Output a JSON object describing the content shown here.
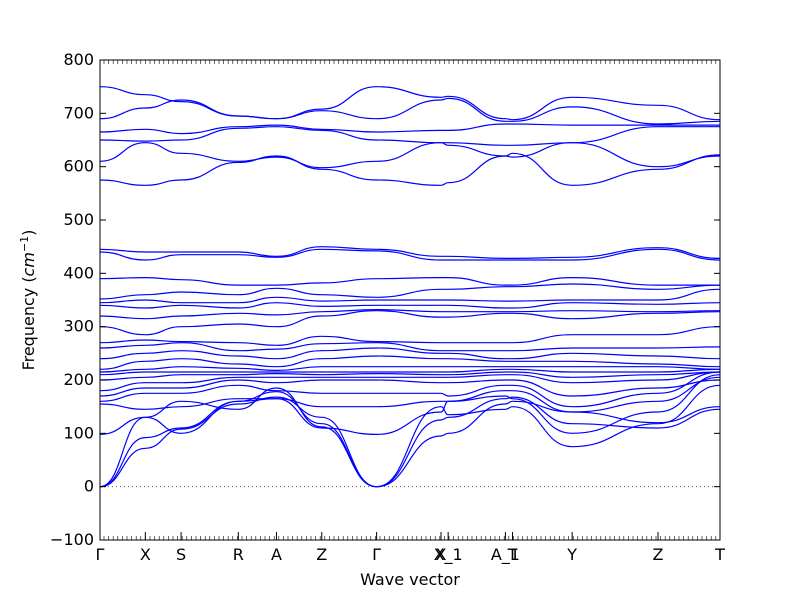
{
  "chart_data": {
    "type": "line",
    "title": "",
    "xlabel": "Wave vector",
    "ylabel": "Frequency ($cm^{-1}$)",
    "ylabel_parts": {
      "prefix": "Frequency (",
      "unit_base": "cm",
      "unit_exp": "−1",
      "suffix": ")"
    },
    "ylim": [
      -100,
      800
    ],
    "yticks": [
      -100,
      0,
      100,
      200,
      300,
      400,
      500,
      600,
      700,
      800
    ],
    "xlim": [
      0,
      13
    ],
    "xticks": [
      {
        "label": "Γ",
        "x": 0
      },
      {
        "label": "X",
        "x": 0.95
      },
      {
        "label": "S",
        "x": 1.7
      },
      {
        "label": "R",
        "x": 2.9
      },
      {
        "label": "A",
        "x": 3.7
      },
      {
        "label": "Z",
        "x": 4.65
      },
      {
        "label": "Γ",
        "x": 5.8
      },
      {
        "label": "X",
        "x": 7.15
      },
      {
        "label": "X_1",
        "x": 7.3
      },
      {
        "label": "A_1",
        "x": 8.5
      },
      {
        "label": "T",
        "x": 8.65
      },
      {
        "label": "Y",
        "x": 9.9
      },
      {
        "label": "Z",
        "x": 11.7
      },
      {
        "label": "T",
        "x": 13.0
      }
    ],
    "zero_line": true,
    "grid": false,
    "legend": "none",
    "line_color": "#0000ff",
    "series": [
      {
        "x": [
          0,
          0.95,
          1.7,
          2.9,
          3.7,
          4.65,
          5.8,
          7.15,
          7.3,
          8.5,
          8.65,
          9.9,
          11.7,
          13.0
        ],
        "values": [
          0,
          72,
          108,
          155,
          168,
          130,
          0,
          95,
          100,
          155,
          160,
          140,
          120,
          150
        ]
      },
      {
        "x": [
          0,
          0.95,
          1.7,
          2.9,
          3.7,
          4.65,
          5.8,
          7.15,
          7.3,
          8.5,
          8.65,
          9.9,
          11.7,
          13.0
        ],
        "values": [
          0,
          92,
          110,
          160,
          178,
          118,
          0,
          125,
          130,
          165,
          168,
          118,
          110,
          145
        ]
      },
      {
        "x": [
          0,
          0.95,
          1.7,
          2.9,
          3.7,
          4.65,
          5.8,
          7.15,
          7.3,
          8.5,
          8.65,
          9.9,
          11.7,
          13.0
        ],
        "values": [
          0,
          130,
          160,
          145,
          185,
          112,
          0,
          150,
          135,
          145,
          150,
          75,
          118,
          190
        ]
      },
      {
        "x": [
          0,
          0.95,
          1.7,
          2.9,
          3.7,
          4.65,
          5.8,
          7.15,
          7.3,
          8.5,
          8.65,
          9.9,
          11.7,
          13.0
        ],
        "values": [
          98,
          130,
          100,
          160,
          165,
          110,
          98,
          140,
          160,
          170,
          165,
          100,
          140,
          210
        ]
      },
      {
        "x": [
          0,
          0.95,
          1.7,
          2.9,
          3.7,
          4.65,
          5.8,
          7.15,
          7.3,
          8.5,
          8.65,
          9.9,
          11.7,
          13.0
        ],
        "values": [
          155,
          145,
          150,
          165,
          165,
          150,
          150,
          160,
          160,
          180,
          180,
          140,
          160,
          205
        ]
      },
      {
        "x": [
          0,
          0.95,
          1.7,
          2.9,
          3.7,
          4.65,
          5.8,
          7.15,
          7.3,
          8.5,
          8.65,
          9.9,
          11.7,
          13.0
        ],
        "values": [
          160,
          175,
          175,
          190,
          180,
          175,
          175,
          175,
          170,
          190,
          190,
          150,
          175,
          215
        ]
      },
      {
        "x": [
          0,
          0.95,
          1.7,
          2.9,
          3.7,
          4.65,
          5.8,
          7.15,
          7.3,
          8.5,
          8.65,
          9.9,
          11.7,
          13.0
        ],
        "values": [
          170,
          185,
          185,
          200,
          195,
          200,
          200,
          195,
          195,
          200,
          200,
          170,
          185,
          200
        ]
      },
      {
        "x": [
          0,
          0.95,
          1.7,
          2.9,
          3.7,
          4.65,
          5.8,
          7.15,
          7.3,
          8.5,
          8.65,
          9.9,
          11.7,
          13.0
        ],
        "values": [
          180,
          195,
          195,
          205,
          205,
          205,
          205,
          205,
          205,
          210,
          210,
          195,
          200,
          215
        ]
      },
      {
        "x": [
          0,
          0.95,
          1.7,
          2.9,
          3.7,
          4.65,
          5.8,
          7.15,
          7.3,
          8.5,
          8.65,
          9.9,
          11.7,
          13.0
        ],
        "values": [
          200,
          205,
          210,
          210,
          212,
          210,
          212,
          210,
          210,
          215,
          215,
          205,
          210,
          215
        ]
      },
      {
        "x": [
          0,
          0.95,
          1.7,
          2.9,
          3.7,
          4.65,
          5.8,
          7.15,
          7.3,
          8.5,
          8.65,
          9.9,
          11.7,
          13.0
        ],
        "values": [
          210,
          215,
          215,
          215,
          215,
          215,
          215,
          215,
          215,
          220,
          220,
          215,
          215,
          220
        ]
      },
      {
        "x": [
          0,
          0.95,
          1.7,
          2.9,
          3.7,
          4.65,
          5.8,
          7.15,
          7.3,
          8.5,
          8.65,
          9.9,
          11.7,
          13.0
        ],
        "values": [
          215,
          220,
          225,
          222,
          218,
          225,
          225,
          225,
          225,
          225,
          225,
          225,
          225,
          220
        ]
      },
      {
        "x": [
          0,
          0.95,
          1.7,
          2.9,
          3.7,
          4.65,
          5.8,
          7.15,
          7.3,
          8.5,
          8.65,
          9.9,
          11.7,
          13.0
        ],
        "values": [
          220,
          235,
          240,
          230,
          225,
          240,
          245,
          240,
          240,
          235,
          235,
          235,
          230,
          225
        ]
      },
      {
        "x": [
          0,
          0.95,
          1.7,
          2.9,
          3.7,
          4.65,
          5.8,
          7.15,
          7.3,
          8.5,
          8.65,
          9.9,
          11.7,
          13.0
        ],
        "values": [
          240,
          250,
          255,
          245,
          240,
          255,
          260,
          250,
          250,
          240,
          240,
          250,
          245,
          240
        ]
      },
      {
        "x": [
          0,
          0.95,
          1.7,
          2.9,
          3.7,
          4.65,
          5.8,
          7.15,
          7.3,
          8.5,
          8.65,
          9.9,
          11.7,
          13.0
        ],
        "values": [
          260,
          265,
          270,
          255,
          258,
          268,
          270,
          255,
          255,
          255,
          255,
          260,
          260,
          262
        ]
      },
      {
        "x": [
          0,
          0.95,
          1.7,
          2.9,
          3.7,
          4.65,
          5.8,
          7.15,
          7.3,
          8.5,
          8.65,
          9.9,
          11.7,
          13.0
        ],
        "values": [
          270,
          275,
          272,
          270,
          265,
          282,
          272,
          270,
          270,
          270,
          270,
          285,
          285,
          300
        ]
      },
      {
        "x": [
          0,
          0.95,
          1.7,
          2.9,
          3.7,
          4.65,
          5.8,
          7.15,
          7.3,
          8.5,
          8.65,
          9.9,
          11.7,
          13.0
        ],
        "values": [
          300,
          285,
          300,
          305,
          300,
          320,
          330,
          318,
          318,
          325,
          325,
          315,
          325,
          328
        ]
      },
      {
        "x": [
          0,
          0.95,
          1.7,
          2.9,
          3.7,
          4.65,
          5.8,
          7.15,
          7.3,
          8.5,
          8.65,
          9.9,
          11.7,
          13.0
        ],
        "values": [
          320,
          315,
          320,
          325,
          322,
          328,
          332,
          328,
          328,
          328,
          328,
          330,
          328,
          330
        ]
      },
      {
        "x": [
          0,
          0.95,
          1.7,
          2.9,
          3.7,
          4.65,
          5.8,
          7.15,
          7.3,
          8.5,
          8.65,
          9.9,
          11.7,
          13.0
        ],
        "values": [
          340,
          335,
          340,
          335,
          345,
          338,
          340,
          340,
          340,
          335,
          335,
          345,
          342,
          345
        ]
      },
      {
        "x": [
          0,
          0.95,
          1.7,
          2.9,
          3.7,
          4.65,
          5.8,
          7.15,
          7.3,
          8.5,
          8.65,
          9.9,
          11.7,
          13.0
        ],
        "values": [
          345,
          350,
          345,
          345,
          355,
          348,
          350,
          350,
          350,
          348,
          348,
          350,
          350,
          370
        ]
      },
      {
        "x": [
          0,
          0.95,
          1.7,
          2.9,
          3.7,
          4.65,
          5.8,
          7.15,
          7.3,
          8.5,
          8.65,
          9.9,
          11.7,
          13.0
        ],
        "values": [
          352,
          360,
          365,
          360,
          372,
          360,
          355,
          370,
          370,
          375,
          375,
          380,
          370,
          378
        ]
      },
      {
        "x": [
          0,
          0.95,
          1.7,
          2.9,
          3.7,
          4.65,
          5.8,
          7.15,
          7.3,
          8.5,
          8.65,
          9.9,
          11.7,
          13.0
        ],
        "values": [
          390,
          392,
          388,
          378,
          378,
          382,
          390,
          392,
          392,
          378,
          378,
          392,
          378,
          378
        ]
      },
      {
        "x": [
          0,
          0.95,
          1.7,
          2.9,
          3.7,
          4.65,
          5.8,
          7.15,
          7.3,
          8.5,
          8.65,
          9.9,
          11.7,
          13.0
        ],
        "values": [
          440,
          425,
          435,
          435,
          430,
          445,
          442,
          425,
          425,
          425,
          425,
          425,
          445,
          425
        ]
      },
      {
        "x": [
          0,
          0.95,
          1.7,
          2.9,
          3.7,
          4.65,
          5.8,
          7.15,
          7.3,
          8.5,
          8.65,
          9.9,
          11.7,
          13.0
        ],
        "values": [
          445,
          440,
          440,
          440,
          432,
          450,
          445,
          432,
          432,
          428,
          428,
          430,
          448,
          428
        ]
      },
      {
        "x": [
          0,
          0.95,
          1.7,
          2.9,
          3.7,
          4.65,
          5.8,
          7.15,
          7.3,
          8.5,
          8.65,
          9.9,
          11.7,
          13.0
        ],
        "values": [
          575,
          565,
          575,
          608,
          620,
          595,
          575,
          565,
          570,
          620,
          625,
          565,
          595,
          622
        ]
      },
      {
        "x": [
          0,
          0.95,
          1.7,
          2.9,
          3.7,
          4.65,
          5.8,
          7.15,
          7.3,
          8.5,
          8.65,
          9.9,
          11.7,
          13.0
        ],
        "values": [
          610,
          645,
          625,
          610,
          618,
          598,
          610,
          645,
          640,
          620,
          618,
          645,
          600,
          620
        ]
      },
      {
        "x": [
          0,
          0.95,
          1.7,
          2.9,
          3.7,
          4.65,
          5.8,
          7.15,
          7.3,
          8.5,
          8.65,
          9.9,
          11.7,
          13.0
        ],
        "values": [
          650,
          648,
          650,
          672,
          675,
          668,
          650,
          645,
          645,
          640,
          640,
          645,
          675,
          675
        ]
      },
      {
        "x": [
          0,
          0.95,
          1.7,
          2.9,
          3.7,
          4.65,
          5.8,
          7.15,
          7.3,
          8.5,
          8.65,
          9.9,
          11.7,
          13.0
        ],
        "values": [
          665,
          670,
          662,
          675,
          678,
          670,
          665,
          668,
          668,
          680,
          680,
          678,
          678,
          678
        ]
      },
      {
        "x": [
          0,
          0.95,
          1.7,
          2.9,
          3.7,
          4.65,
          5.8,
          7.15,
          7.3,
          8.5,
          8.65,
          9.9,
          11.7,
          13.0
        ],
        "values": [
          690,
          710,
          725,
          695,
          690,
          705,
          690,
          725,
          728,
          685,
          685,
          712,
          680,
          685
        ]
      },
      {
        "x": [
          0,
          0.95,
          1.7,
          2.9,
          3.7,
          4.65,
          5.8,
          7.15,
          7.3,
          8.5,
          8.65,
          9.9,
          11.7,
          13.0
        ],
        "values": [
          750,
          735,
          722,
          695,
          690,
          708,
          750,
          730,
          732,
          690,
          688,
          730,
          715,
          688
        ]
      }
    ]
  }
}
